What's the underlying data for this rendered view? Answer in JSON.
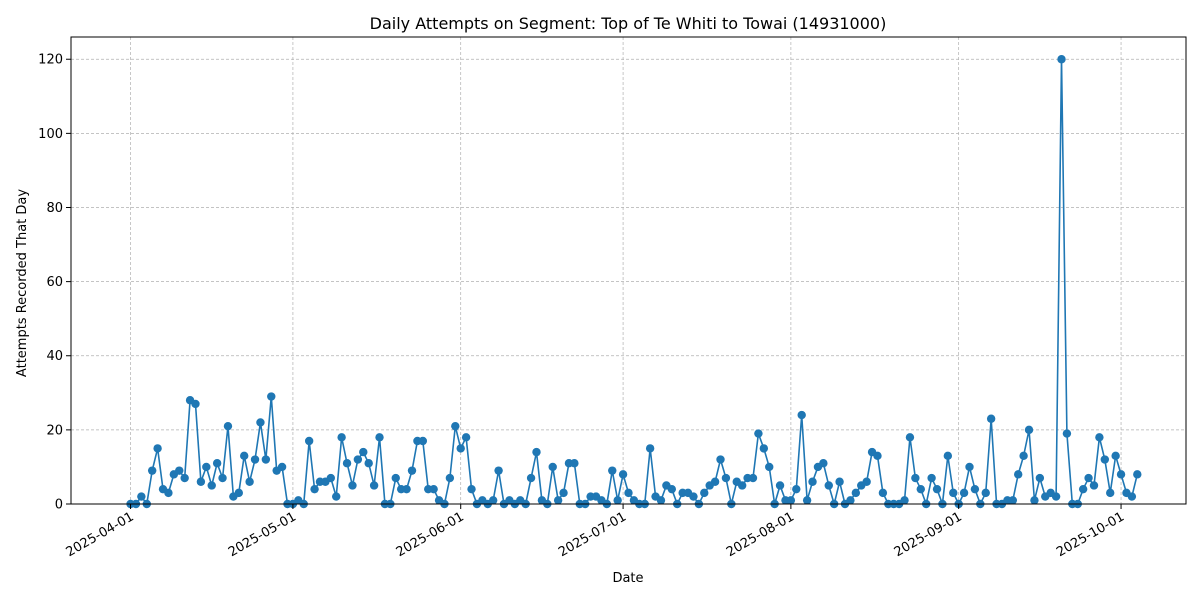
{
  "chart_data": {
    "type": "line",
    "title": "Daily Attempts on Segment: Top of Te Whiti to Towai (14931000)",
    "xlabel": "Date",
    "ylabel": "Attempts Recorded That Day",
    "x_tick_labels": [
      "2025-04-01",
      "2025-05-01",
      "2025-06-01",
      "2025-07-01",
      "2025-08-01",
      "2025-09-01",
      "2025-10-01"
    ],
    "y_tick_labels": [
      "0",
      "20",
      "40",
      "60",
      "80",
      "100",
      "120"
    ],
    "xlim": [
      "2025-03-21",
      "2025-10-13"
    ],
    "ylim": [
      0,
      126
    ],
    "grid": true,
    "markers": "circle",
    "color": "#1f77b4",
    "series": [
      {
        "x": [
          "2025-04-01",
          "2025-04-02",
          "2025-04-03",
          "2025-04-04",
          "2025-04-05",
          "2025-04-06",
          "2025-04-07",
          "2025-04-08",
          "2025-04-09",
          "2025-04-10",
          "2025-04-11",
          "2025-04-12",
          "2025-04-13",
          "2025-04-14",
          "2025-04-15",
          "2025-04-16",
          "2025-04-17",
          "2025-04-18",
          "2025-04-19",
          "2025-04-20",
          "2025-04-21",
          "2025-04-22",
          "2025-04-23",
          "2025-04-24",
          "2025-04-25",
          "2025-04-26",
          "2025-04-27",
          "2025-04-28",
          "2025-04-29",
          "2025-04-30",
          "2025-05-01",
          "2025-05-02",
          "2025-05-03",
          "2025-05-04",
          "2025-05-05",
          "2025-05-06",
          "2025-05-07",
          "2025-05-08",
          "2025-05-09",
          "2025-05-10",
          "2025-05-11",
          "2025-05-12",
          "2025-05-13",
          "2025-05-14",
          "2025-05-15",
          "2025-05-16",
          "2025-05-17",
          "2025-05-18",
          "2025-05-19",
          "2025-05-20",
          "2025-05-21",
          "2025-05-22",
          "2025-05-23",
          "2025-05-24",
          "2025-05-25",
          "2025-05-26",
          "2025-05-27",
          "2025-05-28",
          "2025-05-29",
          "2025-05-30",
          "2025-05-31",
          "2025-06-01",
          "2025-06-02",
          "2025-06-03",
          "2025-06-04",
          "2025-06-05",
          "2025-06-06",
          "2025-06-07",
          "2025-06-08",
          "2025-06-09",
          "2025-06-10",
          "2025-06-11",
          "2025-06-12",
          "2025-06-13",
          "2025-06-14",
          "2025-06-15",
          "2025-06-16",
          "2025-06-17",
          "2025-06-18",
          "2025-06-19",
          "2025-06-20",
          "2025-06-21",
          "2025-06-22",
          "2025-06-23",
          "2025-06-24",
          "2025-06-25",
          "2025-06-26",
          "2025-06-27",
          "2025-06-28",
          "2025-06-29",
          "2025-06-30",
          "2025-07-01",
          "2025-07-02",
          "2025-07-03",
          "2025-07-04",
          "2025-07-05",
          "2025-07-06",
          "2025-07-07",
          "2025-07-08",
          "2025-07-09",
          "2025-07-10",
          "2025-07-11",
          "2025-07-12",
          "2025-07-13",
          "2025-07-14",
          "2025-07-15",
          "2025-07-16",
          "2025-07-17",
          "2025-07-18",
          "2025-07-19",
          "2025-07-20",
          "2025-07-21",
          "2025-07-22",
          "2025-07-23",
          "2025-07-24",
          "2025-07-25",
          "2025-07-26",
          "2025-07-27",
          "2025-07-28",
          "2025-07-29",
          "2025-07-30",
          "2025-07-31",
          "2025-08-01",
          "2025-08-02",
          "2025-08-03",
          "2025-08-04",
          "2025-08-05",
          "2025-08-06",
          "2025-08-07",
          "2025-08-08",
          "2025-08-09",
          "2025-08-10",
          "2025-08-11",
          "2025-08-12",
          "2025-08-13",
          "2025-08-14",
          "2025-08-15",
          "2025-08-16",
          "2025-08-17",
          "2025-08-18",
          "2025-08-19",
          "2025-08-20",
          "2025-08-21",
          "2025-08-22",
          "2025-08-23",
          "2025-08-24",
          "2025-08-25",
          "2025-08-26",
          "2025-08-27",
          "2025-08-28",
          "2025-08-29",
          "2025-08-30",
          "2025-08-31",
          "2025-09-01",
          "2025-09-02",
          "2025-09-03",
          "2025-09-04",
          "2025-09-05",
          "2025-09-06",
          "2025-09-07",
          "2025-09-08",
          "2025-09-09",
          "2025-09-10",
          "2025-09-11",
          "2025-09-12",
          "2025-09-13",
          "2025-09-14",
          "2025-09-15",
          "2025-09-16",
          "2025-09-17",
          "2025-09-18",
          "2025-09-19",
          "2025-09-20",
          "2025-09-21",
          "2025-09-22",
          "2025-09-23",
          "2025-09-24",
          "2025-09-25",
          "2025-09-26",
          "2025-09-27",
          "2025-09-28",
          "2025-09-29",
          "2025-09-30",
          "2025-10-01",
          "2025-10-02",
          "2025-10-03",
          "2025-10-04"
        ],
        "y": [
          0,
          0,
          2,
          0,
          9,
          15,
          4,
          3,
          8,
          9,
          7,
          28,
          27,
          6,
          10,
          5,
          11,
          7,
          21,
          2,
          3,
          13,
          6,
          12,
          22,
          12,
          29,
          9,
          10,
          0,
          0,
          1,
          0,
          17,
          4,
          6,
          6,
          7,
          2,
          18,
          11,
          5,
          12,
          14,
          11,
          5,
          18,
          0,
          0,
          7,
          4,
          4,
          9,
          17,
          17,
          4,
          4,
          1,
          0,
          7,
          21,
          15,
          18,
          4,
          0,
          1,
          0,
          1,
          9,
          0,
          1,
          0,
          1,
          0,
          7,
          14,
          1,
          0,
          10,
          1,
          3,
          11,
          11,
          0,
          0,
          2,
          2,
          1,
          0,
          9,
          1,
          8,
          3,
          1,
          0,
          0,
          15,
          2,
          1,
          5,
          4,
          0,
          3,
          3,
          2,
          0,
          3,
          5,
          6,
          12,
          7,
          0,
          6,
          5,
          7,
          7,
          19,
          15,
          10,
          0,
          5,
          1,
          1,
          4,
          24,
          1,
          6,
          10,
          11,
          5,
          0,
          6,
          0,
          1,
          3,
          5,
          6,
          14,
          13,
          3,
          0,
          0,
          0,
          1,
          18,
          7,
          4,
          0,
          7,
          4,
          0,
          13,
          3,
          0,
          3,
          10,
          4,
          0,
          3,
          23,
          0,
          0,
          1,
          1,
          8,
          13,
          20,
          1,
          7,
          2,
          3,
          2,
          120,
          19,
          0,
          0,
          4,
          7,
          5,
          18,
          12,
          3,
          13,
          8,
          3,
          2,
          8
        ]
      }
    ]
  }
}
